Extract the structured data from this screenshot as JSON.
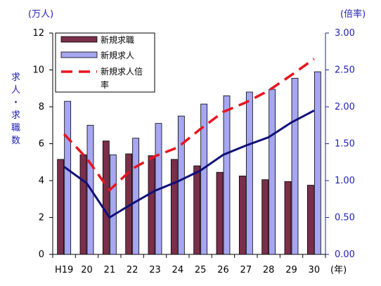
{
  "chart_data": {
    "type": "bar",
    "categories": [
      "H19",
      "20",
      "21",
      "22",
      "23",
      "24",
      "25",
      "26",
      "27",
      "28",
      "29",
      "30"
    ],
    "y_left": {
      "unit_label": "(万人)",
      "title_chars": [
        "求",
        "人",
        "・",
        "求",
        "職",
        "数"
      ],
      "ylim": [
        0,
        12
      ],
      "ticks": [
        "0",
        "2",
        "4",
        "6",
        "8",
        "10",
        "12"
      ]
    },
    "y_right": {
      "unit_label": "(倍率)",
      "ylim": [
        0,
        3
      ],
      "ticks": [
        "0.00",
        "0.50",
        "1.00",
        "1.50",
        "2.00",
        "2.50",
        "3.00"
      ]
    },
    "x_unit_label": "(年)",
    "grid": false,
    "legend_position": "top-left",
    "series": [
      {
        "name": "新規求職",
        "type": "bar",
        "axis": "left",
        "color": "#7a2e4a",
        "values": [
          5.15,
          5.4,
          6.15,
          5.45,
          5.35,
          5.15,
          4.8,
          4.45,
          4.25,
          4.05,
          3.95,
          3.75
        ]
      },
      {
        "name": "新規求人",
        "type": "bar",
        "axis": "left",
        "color": "#a6a6f2",
        "values": [
          8.3,
          7.0,
          5.4,
          6.3,
          7.1,
          7.5,
          8.15,
          8.6,
          8.8,
          8.95,
          9.55,
          9.9
        ]
      },
      {
        "name": "新規求人倍率",
        "type": "line",
        "axis": "right",
        "color": "#e8141e",
        "dash": true,
        "values": [
          1.63,
          1.3,
          0.87,
          1.16,
          1.33,
          1.45,
          1.7,
          1.93,
          2.06,
          2.22,
          2.43,
          2.65
        ]
      },
      {
        "name": "",
        "type": "line",
        "axis": "left",
        "color": "#10107a",
        "dash": false,
        "values": [
          4.75,
          3.85,
          2.0,
          2.75,
          3.45,
          3.95,
          4.55,
          5.4,
          5.9,
          6.35,
          7.15,
          7.8
        ]
      }
    ],
    "legend": [
      {
        "label": "新規求職",
        "kind": "bar",
        "color": "#7a2e4a"
      },
      {
        "label": "新規求人",
        "kind": "bar",
        "color": "#a6a6f2"
      },
      {
        "label_lines": [
          "新規求人倍",
          "率"
        ],
        "kind": "dash",
        "color": "#e8141e"
      }
    ]
  }
}
